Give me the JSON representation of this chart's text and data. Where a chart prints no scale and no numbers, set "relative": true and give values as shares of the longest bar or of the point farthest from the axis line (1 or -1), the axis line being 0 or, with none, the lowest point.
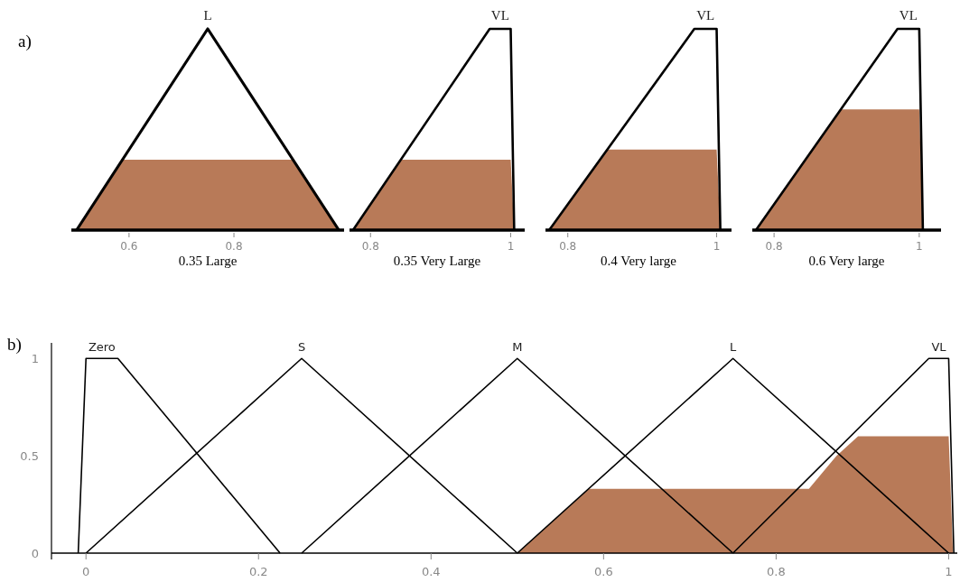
{
  "chart_data": [
    {
      "type": "line",
      "relative": true,
      "xlabel": "0.35 Large",
      "annotations": [
        "a)"
      ],
      "xlim": [
        0.49,
        1.01
      ],
      "xticks": [
        0.6,
        0.8
      ],
      "tick_labels": "x",
      "series": [
        {
          "type": "area",
          "color": "#b87a58",
          "x": [
            0.5,
            0.5875,
            0.9125,
            1.0
          ],
          "values": [
            0,
            0.35,
            0.35,
            0
          ]
        },
        {
          "type": "line",
          "name": "L",
          "color": "#000000",
          "x": [
            0.5,
            0.75,
            1.0
          ],
          "values": [
            0,
            1,
            0
          ]
        }
      ]
    },
    {
      "type": "line",
      "relative": true,
      "xlabel": "0.35 Very Large",
      "xlim": [
        0.77,
        1.02
      ],
      "xticks": [
        0.8,
        1
      ],
      "tick_labels": "x",
      "series": [
        {
          "type": "area",
          "color": "#b87a58",
          "x": [
            0.775,
            0.843,
            1.0,
            1.005
          ],
          "values": [
            0,
            0.35,
            0.35,
            0
          ]
        },
        {
          "type": "line",
          "name": "VL",
          "color": "#000000",
          "x": [
            0.775,
            0.97,
            1.0,
            1.005
          ],
          "values": [
            0,
            1,
            1,
            0
          ]
        }
      ]
    },
    {
      "type": "line",
      "relative": true,
      "xlabel": "0.4 Very large",
      "xlim": [
        0.77,
        1.02
      ],
      "xticks": [
        0.8,
        1
      ],
      "tick_labels": "x",
      "series": [
        {
          "type": "area",
          "color": "#b87a58",
          "x": [
            0.775,
            0.853,
            1.0,
            1.005
          ],
          "values": [
            0,
            0.4,
            0.4,
            0
          ]
        },
        {
          "type": "line",
          "name": "VL",
          "color": "#000000",
          "x": [
            0.775,
            0.97,
            1.0,
            1.005
          ],
          "values": [
            0,
            1,
            1,
            0
          ]
        }
      ]
    },
    {
      "type": "line",
      "relative": true,
      "xlabel": "0.6 Very large",
      "xlim": [
        0.77,
        1.03
      ],
      "xticks": [
        0.8,
        1
      ],
      "tick_labels": "x",
      "series": [
        {
          "type": "area",
          "color": "#b87a58",
          "x": [
            0.775,
            0.892,
            1.0,
            1.005
          ],
          "values": [
            0,
            0.6,
            0.6,
            0
          ]
        },
        {
          "type": "line",
          "name": "VL",
          "color": "#000000",
          "x": [
            0.775,
            0.97,
            1.0,
            1.005
          ],
          "values": [
            0,
            1,
            1,
            0
          ]
        }
      ]
    },
    {
      "type": "line",
      "annotations": [
        "b)"
      ],
      "xlim": [
        -0.04,
        1.01
      ],
      "ylim": [
        0,
        1.08
      ],
      "xticks": [
        0,
        0.2,
        0.4,
        0.6,
        0.8,
        1
      ],
      "yticks": [
        0,
        0.5,
        1
      ],
      "series": [
        {
          "type": "area",
          "color": "#b87a58",
          "x": [
            0.5,
            0.583,
            0.838,
            0.87,
            0.895,
            1.0,
            1.005
          ],
          "values": [
            0,
            0.33,
            0.33,
            0.5,
            0.6,
            0.6,
            0
          ]
        },
        {
          "type": "line",
          "name": "Zero",
          "color": "#000000",
          "x": [
            -0.009,
            0,
            0.037,
            0.225
          ],
          "values": [
            0,
            1,
            1,
            0
          ]
        },
        {
          "type": "line",
          "name": "S",
          "color": "#000000",
          "x": [
            0,
            0.25,
            0.5
          ],
          "values": [
            0,
            1,
            0
          ]
        },
        {
          "type": "line",
          "name": "M",
          "color": "#000000",
          "x": [
            0.25,
            0.5,
            0.75
          ],
          "values": [
            0,
            1,
            0
          ]
        },
        {
          "type": "line",
          "name": "L",
          "color": "#000000",
          "x": [
            0.5,
            0.75,
            1.0
          ],
          "values": [
            0,
            1,
            0
          ]
        },
        {
          "type": "line",
          "name": "VL",
          "color": "#000000",
          "x": [
            0.75,
            0.977,
            1.0,
            1.006
          ],
          "values": [
            0,
            1,
            1,
            0
          ]
        }
      ]
    }
  ]
}
